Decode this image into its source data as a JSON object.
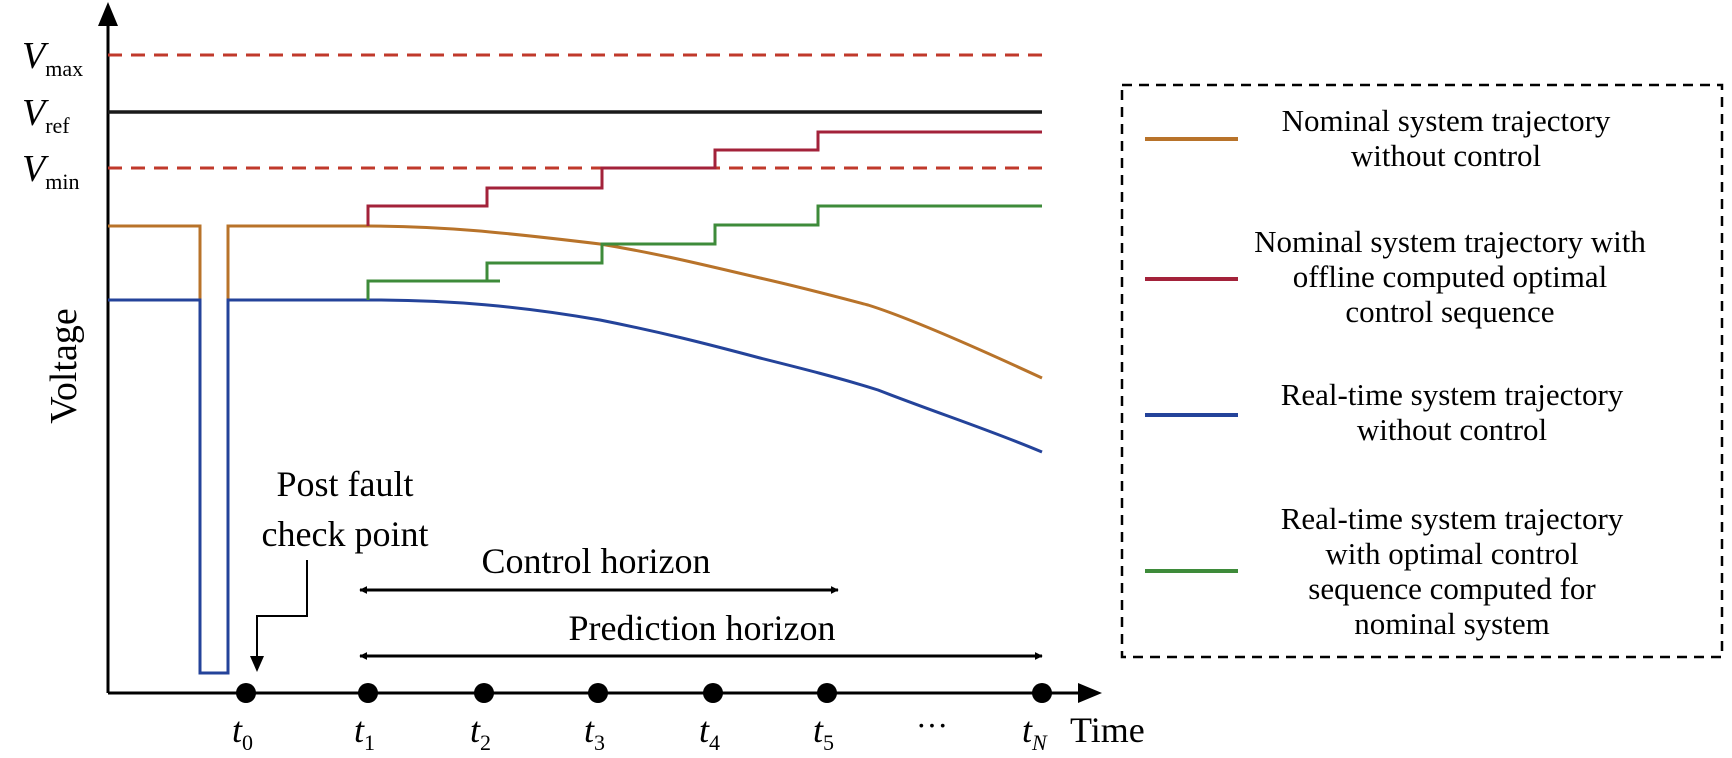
{
  "axis": {
    "y_label": "Voltage",
    "x_label": "Time"
  },
  "levels": {
    "vmax": {
      "base": "V",
      "sub": "max",
      "color": "#c0392b"
    },
    "vref": {
      "base": "V",
      "sub": "ref",
      "color": "#1a1a1a"
    },
    "vmin": {
      "base": "V",
      "sub": "min",
      "color": "#c0392b"
    }
  },
  "time_points": [
    {
      "base": "t",
      "sub": "0"
    },
    {
      "base": "t",
      "sub": "1"
    },
    {
      "base": "t",
      "sub": "2"
    },
    {
      "base": "t",
      "sub": "3"
    },
    {
      "base": "t",
      "sub": "4"
    },
    {
      "base": "t",
      "sub": "5"
    },
    {
      "base": "t",
      "sub": "N"
    }
  ],
  "ellipsis": "···",
  "annotations": {
    "checkpoint_line1": "Post fault",
    "checkpoint_line2": "check point",
    "control_horizon": "Control horizon",
    "prediction_horizon": "Prediction horizon"
  },
  "legend": {
    "items": [
      {
        "lines": [
          "Nominal system trajectory",
          "without control"
        ],
        "color": "#b8732a"
      },
      {
        "lines": [
          "Nominal system trajectory with",
          "offline computed optimal",
          "control sequence"
        ],
        "color": "#a3223a"
      },
      {
        "lines": [
          "Real-time system trajectory",
          "without control"
        ],
        "color": "#24439a"
      },
      {
        "lines": [
          "Real-time system trajectory",
          "with optimal control",
          "sequence computed for",
          "nominal system"
        ],
        "color": "#3e8b3a"
      }
    ]
  }
}
